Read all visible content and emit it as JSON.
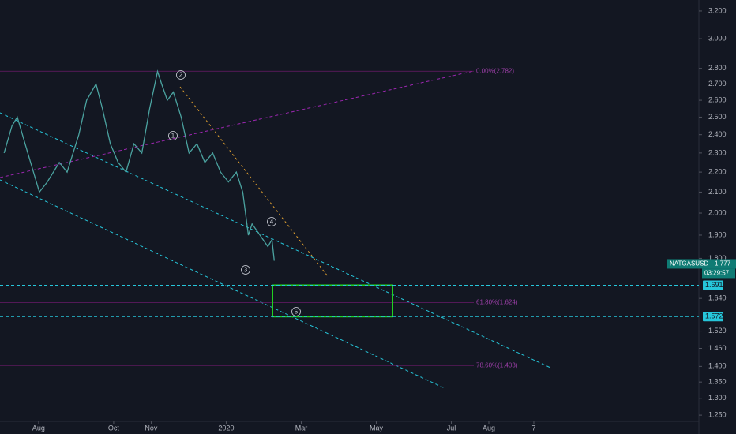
{
  "chart_data": {
    "type": "line",
    "symbol": "NATGASUSD",
    "countdown": "03:29:57",
    "log_scale": true,
    "color": "#4ba3a0",
    "x": [
      7.08,
      7.29,
      7.43,
      7.71,
      8.02,
      8.23,
      8.55,
      8.76,
      9.07,
      9.28,
      9.53,
      9.7,
      9.91,
      10.12,
      10.33,
      10.54,
      10.75,
      10.96,
      11.17,
      11.28,
      11.43,
      11.59,
      11.8,
      12.01,
      12.22,
      12.43,
      12.64,
      12.85,
      13.06,
      13.27,
      13.44,
      13.59,
      13.69,
      13.9,
      14.11,
      14.22,
      14.28
    ],
    "values": [
      2.3,
      2.45,
      2.5,
      2.3,
      2.1,
      2.15,
      2.25,
      2.2,
      2.4,
      2.6,
      2.7,
      2.55,
      2.35,
      2.25,
      2.2,
      2.35,
      2.3,
      2.55,
      2.78,
      2.7,
      2.6,
      2.65,
      2.5,
      2.3,
      2.35,
      2.25,
      2.3,
      2.2,
      2.15,
      2.2,
      2.1,
      1.9,
      1.95,
      1.9,
      1.85,
      1.88,
      1.79
    ],
    "xlim": [
      6.97,
      25.6
    ],
    "xticks": [
      {
        "value": 8,
        "label": "Aug"
      },
      {
        "value": 10,
        "label": "Oct"
      },
      {
        "value": 11,
        "label": "Nov"
      },
      {
        "value": 13,
        "label": "2020"
      },
      {
        "value": 15,
        "label": "Mar"
      },
      {
        "value": 17,
        "label": "May"
      },
      {
        "value": 19,
        "label": "Jul"
      },
      {
        "value": 20,
        "label": "Aug"
      },
      {
        "value": 21.2,
        "label": "7"
      }
    ],
    "ylim": [
      1.232,
      3.283
    ],
    "yticks": [
      {
        "value": 3.2,
        "label": "3.200"
      },
      {
        "value": 3.0,
        "label": "3.000"
      },
      {
        "value": 2.8,
        "label": "2.800"
      },
      {
        "value": 2.7,
        "label": "2.700"
      },
      {
        "value": 2.6,
        "label": "2.600"
      },
      {
        "value": 2.5,
        "label": "2.500"
      },
      {
        "value": 2.4,
        "label": "2.400"
      },
      {
        "value": 2.3,
        "label": "2.300"
      },
      {
        "value": 2.2,
        "label": "2.200"
      },
      {
        "value": 2.1,
        "label": "2.100"
      },
      {
        "value": 2.0,
        "label": "2.000"
      },
      {
        "value": 1.9,
        "label": "1.900"
      },
      {
        "value": 1.8,
        "label": "1.800"
      },
      {
        "value": 1.64,
        "label": "1.640"
      },
      {
        "value": 1.52,
        "label": "1.520"
      },
      {
        "value": 1.46,
        "label": "1.460"
      },
      {
        "value": 1.4,
        "label": "1.400"
      },
      {
        "value": 1.35,
        "label": "1.350"
      },
      {
        "value": 1.3,
        "label": "1.300"
      },
      {
        "value": 1.25,
        "label": "1.250"
      }
    ],
    "last_price": {
      "value": 1.777,
      "label": "1.777"
    },
    "levels": [
      {
        "value": 1.691,
        "label": "1.691"
      },
      {
        "value": 1.572,
        "label": "1.572"
      }
    ],
    "fib_levels": [
      {
        "value": 2.782,
        "label": "0.00%(2.782)"
      },
      {
        "value": 1.624,
        "label": "61.80%(1.624)"
      },
      {
        "value": 1.403,
        "label": "78.60%(1.403)"
      }
    ],
    "wave_labels": [
      "1",
      "2",
      "3",
      "4",
      "5"
    ]
  }
}
